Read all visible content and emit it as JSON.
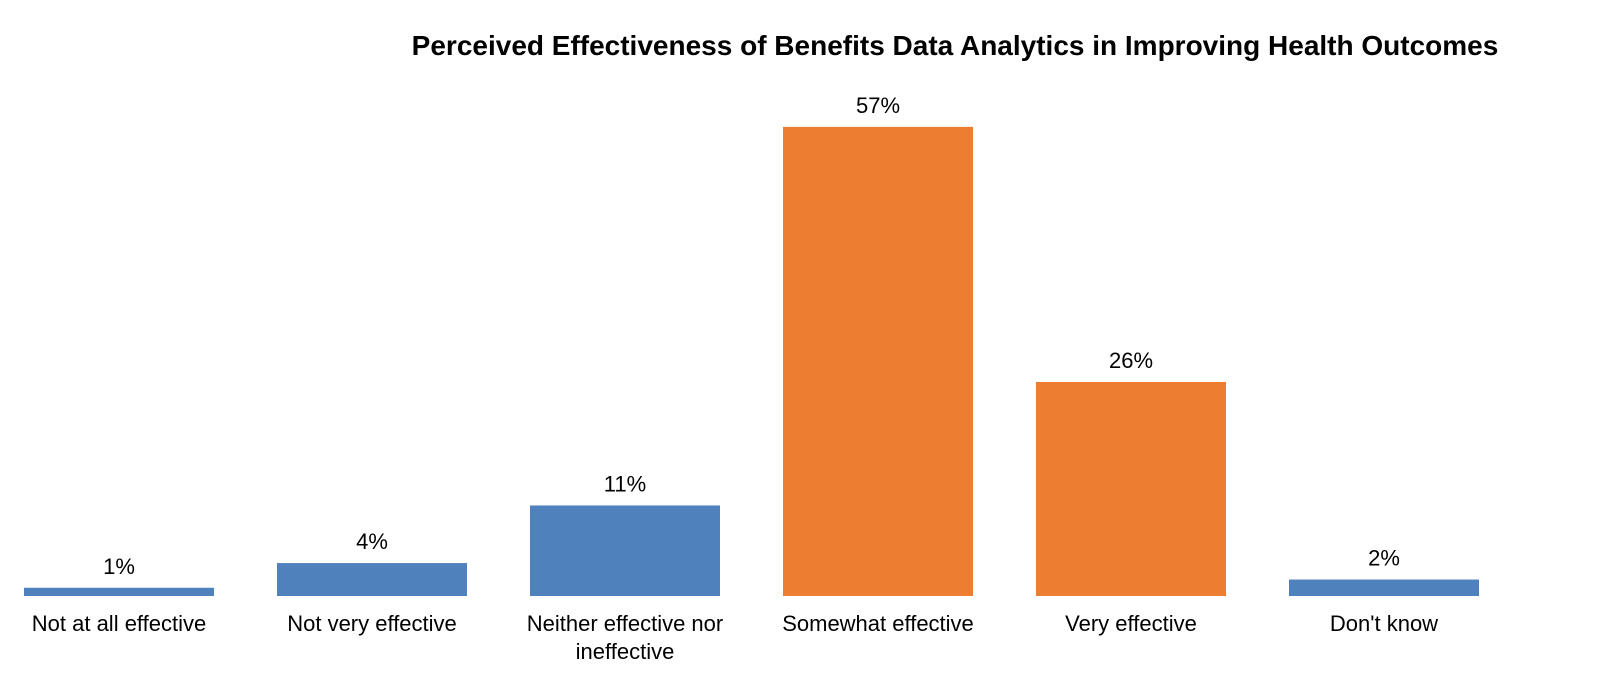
{
  "colors": {
    "ineffective_bar": "#4f81bd",
    "effective_bar": "#ed7d31",
    "background": "#ffffff",
    "text": "#000000"
  },
  "chart_data": {
    "type": "bar",
    "title": "Perceived Effectiveness of Benefits Data Analytics in Improving Health Outcomes",
    "xlabel": "",
    "ylabel": "",
    "ylim": [
      0,
      60
    ],
    "grid": false,
    "legend": "none",
    "value_suffix": "%",
    "categories": [
      "Not at all effective",
      "Not very effective",
      "Neither effective nor ineffective",
      "Somewhat effective",
      "Very effective",
      "Don't know"
    ],
    "category_label_lines": [
      [
        "Not at all effective"
      ],
      [
        "Not very effective"
      ],
      [
        "Neither effective nor",
        "ineffective"
      ],
      [
        "Somewhat effective"
      ],
      [
        "Very effective"
      ],
      [
        "Don't know"
      ]
    ],
    "values": [
      1,
      4,
      11,
      57,
      26,
      2
    ],
    "value_labels": [
      "1%",
      "4%",
      "11%",
      "57%",
      "26%",
      "2%"
    ],
    "bar_colors": [
      "#4f81bd",
      "#4f81bd",
      "#4f81bd",
      "#ed7d31",
      "#ed7d31",
      "#4f81bd"
    ]
  }
}
